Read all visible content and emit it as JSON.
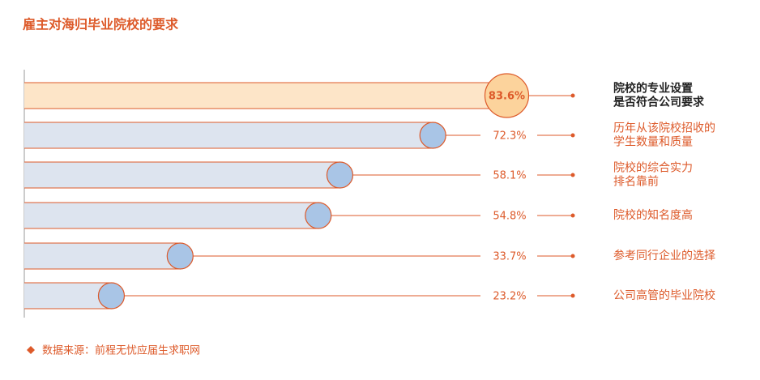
{
  "chart_data": {
    "type": "bar",
    "orientation": "horizontal",
    "title": "雇主对海归毕业院校的要求",
    "categories": [
      [
        "院校的专业设置",
        "是否符合公司要求"
      ],
      [
        "历年从该院校招收的",
        "学生数量和质量"
      ],
      [
        "院校的综合实力",
        "排名靠前"
      ],
      [
        "院校的知名度高"
      ],
      [
        "参考同行企业的选择"
      ],
      [
        "公司高管的毕业院校"
      ]
    ],
    "values": [
      83.6,
      72.3,
      58.1,
      54.8,
      33.7,
      23.2
    ],
    "value_labels": [
      "83.6%",
      "72.3%",
      "58.1%",
      "54.8%",
      "33.7%",
      "23.2%"
    ],
    "xlim": [
      0,
      100
    ],
    "color": "#dde4ef",
    "marker_color": "#a9c5e6",
    "highlight_color": "#fde5c8",
    "highlight_marker_color": "#fcd39c",
    "accent_color": "#dd5a2a",
    "source": "数据来源：前程无忧应届生求职网"
  }
}
